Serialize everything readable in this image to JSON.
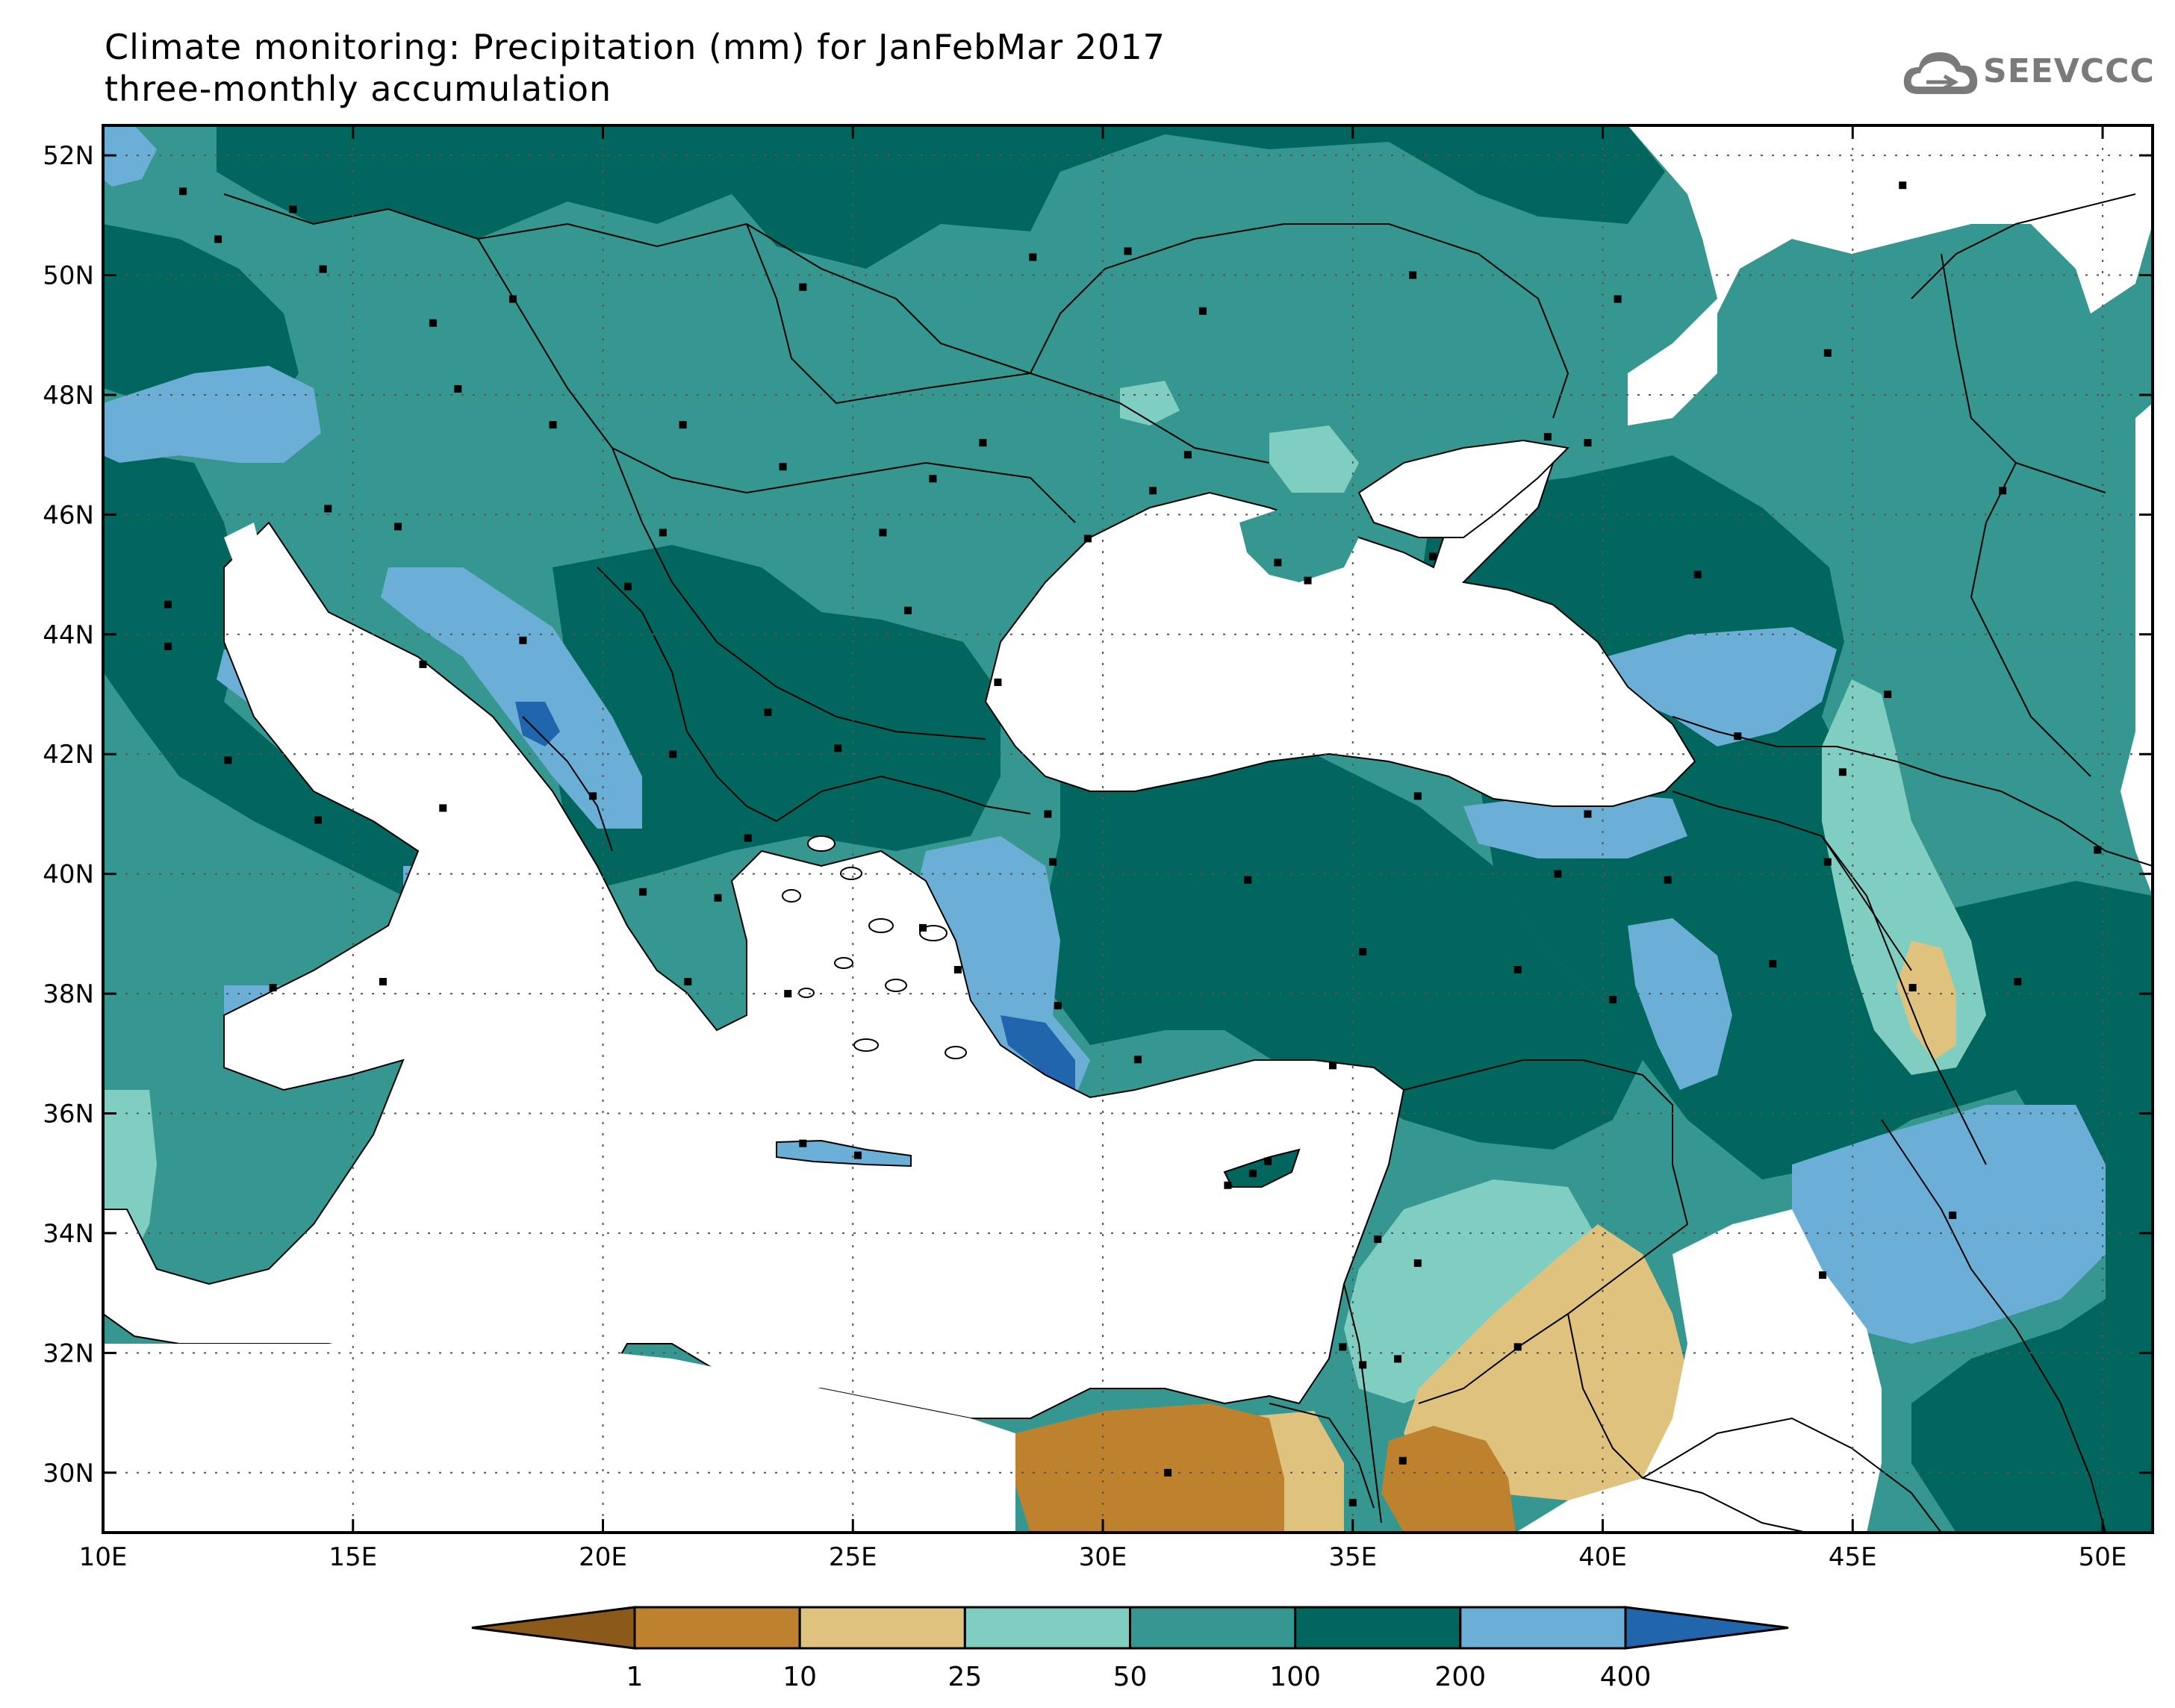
{
  "title": {
    "line1": "Climate monitoring: Precipitation (mm) for JanFebMar 2017",
    "line2": "three-monthly accumulation"
  },
  "logo": {
    "text": "SEEVCCC",
    "icon": "cloud-icon",
    "color": "#7a7a7a"
  },
  "map": {
    "lon_range": [
      10,
      51
    ],
    "lat_range": [
      29,
      52.5
    ],
    "lon_ticks": [
      {
        "value": 10,
        "label": "10E"
      },
      {
        "value": 15,
        "label": "15E"
      },
      {
        "value": 20,
        "label": "20E"
      },
      {
        "value": 25,
        "label": "25E"
      },
      {
        "value": 30,
        "label": "30E"
      },
      {
        "value": 35,
        "label": "35E"
      },
      {
        "value": 40,
        "label": "40E"
      },
      {
        "value": 45,
        "label": "45E"
      },
      {
        "value": 50,
        "label": "50E"
      }
    ],
    "lat_ticks": [
      {
        "value": 30,
        "label": "30N"
      },
      {
        "value": 32,
        "label": "32N"
      },
      {
        "value": 34,
        "label": "34N"
      },
      {
        "value": 36,
        "label": "36N"
      },
      {
        "value": 38,
        "label": "38N"
      },
      {
        "value": 40,
        "label": "40N"
      },
      {
        "value": 42,
        "label": "42N"
      },
      {
        "value": 44,
        "label": "44N"
      },
      {
        "value": 46,
        "label": "46N"
      },
      {
        "value": 48,
        "label": "48N"
      },
      {
        "value": 50,
        "label": "50N"
      },
      {
        "value": 52,
        "label": "52N"
      }
    ],
    "grid": "dotted",
    "stations": "black square markers"
  },
  "colors": {
    "lt1": "#8b5a1b",
    "c1_10": "#be812d",
    "c10_25": "#e0c27f",
    "c25_50": "#80cdc1",
    "c50_100": "#35978f",
    "c100_200": "#01665e",
    "c200_400": "#6baed6",
    "gt400": "#2166ac",
    "water": "#ffffff",
    "station": "#000000"
  },
  "colorbar": {
    "boundaries": [
      "1",
      "10",
      "25",
      "50",
      "100",
      "200",
      "400"
    ],
    "colors": [
      "#8b5a1b",
      "#be812d",
      "#e0c27f",
      "#80cdc1",
      "#35978f",
      "#01665e",
      "#6baed6",
      "#2166ac"
    ]
  }
}
